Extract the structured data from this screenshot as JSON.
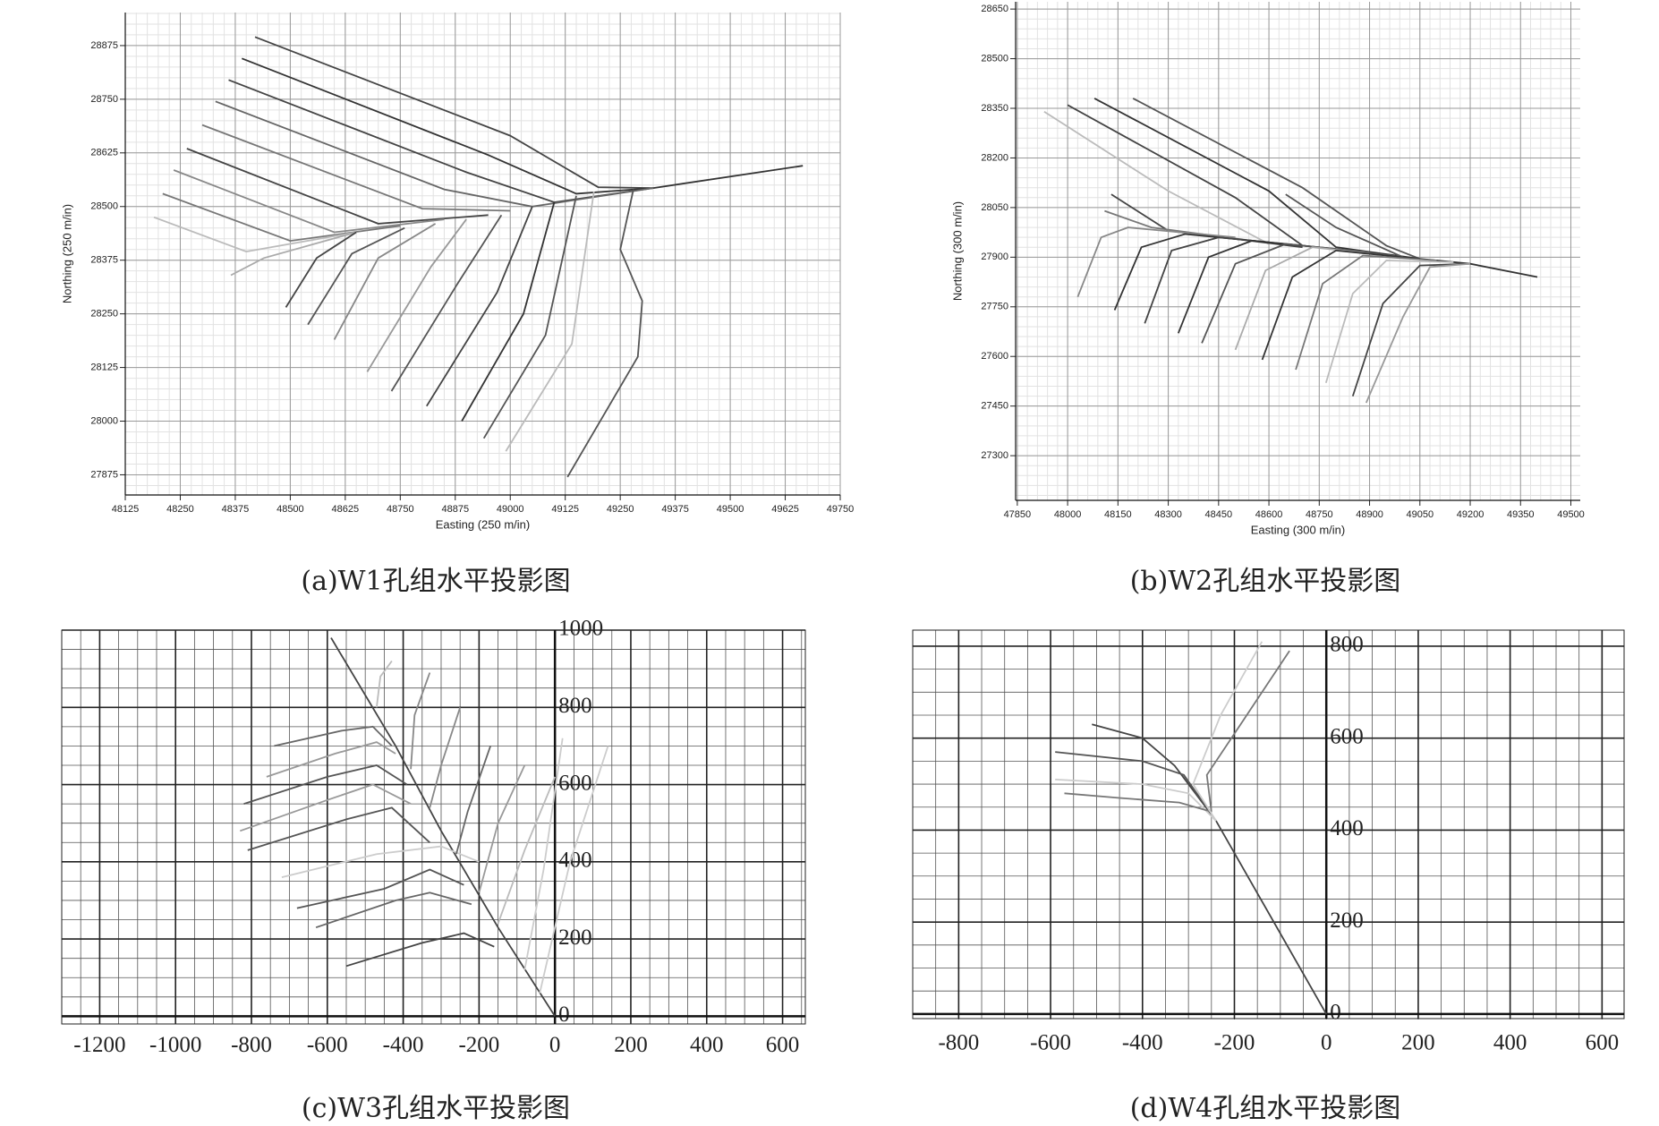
{
  "chart_data": [
    {
      "type": "line",
      "title": "(a)W1孔组水平投影图",
      "xlabel": "Easting (250 m/in)",
      "ylabel": "Northing (250 m/in)",
      "xlim": [
        48125,
        49750
      ],
      "ylim": [
        27828,
        28952
      ],
      "xticks": [
        48125,
        48250,
        48375,
        48500,
        48625,
        48750,
        48875,
        49000,
        49125,
        49250,
        49375,
        49500,
        49625,
        49750
      ],
      "yticks": [
        27875,
        28000,
        28125,
        28250,
        28375,
        28500,
        28625,
        28750,
        28875
      ],
      "grid": true,
      "series": [
        {
          "color": "#333333",
          "x": [
            49325,
            49665
          ],
          "values": [
            28543,
            28595
          ]
        },
        {
          "color": "#444444",
          "x": [
            48420,
            49000,
            49200,
            49325
          ],
          "values": [
            28895,
            28665,
            28545,
            28543
          ]
        },
        {
          "color": "#333333",
          "x": [
            48390,
            48950,
            49150,
            49325
          ],
          "values": [
            28845,
            28620,
            28530,
            28543
          ]
        },
        {
          "color": "#444444",
          "x": [
            48360,
            48900,
            49100,
            49325
          ],
          "values": [
            28795,
            28580,
            28510,
            28543
          ]
        },
        {
          "color": "#666666",
          "x": [
            48330,
            48850,
            49050,
            49325
          ],
          "values": [
            28745,
            28540,
            28500,
            28543
          ]
        },
        {
          "color": "#777777",
          "x": [
            48300,
            48800,
            49000
          ],
          "values": [
            28690,
            28495,
            28490
          ]
        },
        {
          "color": "#444444",
          "x": [
            48265,
            48700,
            48950
          ],
          "values": [
            28635,
            28460,
            28480
          ]
        },
        {
          "color": "#888888",
          "x": [
            48235,
            48600,
            48850
          ],
          "values": [
            28585,
            28440,
            28470
          ]
        },
        {
          "color": "#777777",
          "x": [
            48210,
            48500,
            48750
          ],
          "values": [
            28530,
            28420,
            28455
          ]
        },
        {
          "color": "#bbbbbb",
          "x": [
            48190,
            48400,
            48650
          ],
          "values": [
            28475,
            28395,
            28440
          ]
        },
        {
          "color": "#aaaaaa",
          "x": [
            48365,
            48440,
            48650
          ],
          "values": [
            28340,
            28380,
            28440
          ]
        },
        {
          "color": "#444444",
          "x": [
            48490,
            48560,
            48650
          ],
          "values": [
            28265,
            28380,
            28440
          ]
        },
        {
          "color": "#555555",
          "x": [
            48540,
            48640,
            48760
          ],
          "values": [
            28225,
            28390,
            28450
          ]
        },
        {
          "color": "#888888",
          "x": [
            48600,
            48700,
            48830
          ],
          "values": [
            28190,
            28380,
            28460
          ]
        },
        {
          "color": "#999999",
          "x": [
            48675,
            48820,
            48900
          ],
          "values": [
            28115,
            28360,
            28470
          ]
        },
        {
          "color": "#555555",
          "x": [
            48730,
            48880,
            48980
          ],
          "values": [
            28070,
            28320,
            28480
          ]
        },
        {
          "color": "#444444",
          "x": [
            48810,
            48970,
            49050
          ],
          "values": [
            28035,
            28300,
            28500
          ]
        },
        {
          "color": "#333333",
          "x": [
            48890,
            49030,
            49100
          ],
          "values": [
            28000,
            28250,
            28510
          ]
        },
        {
          "color": "#555555",
          "x": [
            48940,
            49080,
            49150
          ],
          "values": [
            27960,
            28200,
            28525
          ]
        },
        {
          "color": "#bbbbbb",
          "x": [
            48990,
            49140,
            49190
          ],
          "values": [
            27930,
            28180,
            28535
          ]
        },
        {
          "color": "#555555",
          "x": [
            49130,
            49290,
            49300,
            49250,
            49280
          ],
          "values": [
            27870,
            28150,
            28280,
            28400,
            28540
          ]
        }
      ]
    },
    {
      "type": "line",
      "title": "(b)W2孔组水平投影图",
      "xlabel": "Easting (300 m/in)",
      "ylabel": "Northing (300 m/in)",
      "xlim": [
        47845,
        49528
      ],
      "ylim": [
        27165,
        28672
      ],
      "xticks": [
        47850,
        48000,
        48150,
        48300,
        48450,
        48600,
        48750,
        48900,
        49050,
        49200,
        49350,
        49500
      ],
      "yticks": [
        27300,
        27450,
        27600,
        27750,
        27900,
        28050,
        28200,
        28350,
        28500,
        28650
      ],
      "grid": true,
      "series": [
        {
          "color": "#333333",
          "x": [
            49050,
            49200,
            49400
          ],
          "values": [
            27895,
            27880,
            27840
          ]
        },
        {
          "color": "#555555",
          "x": [
            48195,
            48700,
            48950,
            49050
          ],
          "values": [
            28380,
            28110,
            27935,
            27895
          ]
        },
        {
          "color": "#333333",
          "x": [
            48080,
            48600,
            48800,
            49050
          ],
          "values": [
            28380,
            28100,
            27930,
            27895
          ]
        },
        {
          "color": "#444444",
          "x": [
            48000,
            48500,
            48700,
            49000
          ],
          "values": [
            28360,
            28080,
            27935,
            27900
          ]
        },
        {
          "color": "#bbbbbb",
          "x": [
            47930,
            48300,
            48600
          ],
          "values": [
            28340,
            28100,
            27940
          ]
        },
        {
          "color": "#555555",
          "x": [
            48650,
            48800,
            49000
          ],
          "values": [
            28090,
            27990,
            27900
          ]
        },
        {
          "color": "#444444",
          "x": [
            48130,
            48300,
            48700
          ],
          "values": [
            28090,
            27980,
            27930
          ]
        },
        {
          "color": "#777777",
          "x": [
            48110,
            48250,
            48550
          ],
          "values": [
            28040,
            27990,
            27950
          ]
        },
        {
          "color": "#888888",
          "x": [
            48030,
            48100,
            48180,
            48500
          ],
          "values": [
            27780,
            27960,
            27990,
            27960
          ]
        },
        {
          "color": "#333333",
          "x": [
            48140,
            48220,
            48350,
            48600
          ],
          "values": [
            27740,
            27930,
            27970,
            27945
          ]
        },
        {
          "color": "#444444",
          "x": [
            48230,
            48310,
            48450,
            48700
          ],
          "values": [
            27700,
            27920,
            27960,
            27935
          ]
        },
        {
          "color": "#333333",
          "x": [
            48330,
            48420,
            48550,
            48800
          ],
          "values": [
            27670,
            27900,
            27950,
            27925
          ]
        },
        {
          "color": "#555555",
          "x": [
            48400,
            48500,
            48650,
            48900
          ],
          "values": [
            27640,
            27880,
            27940,
            27915
          ]
        },
        {
          "color": "#aaaaaa",
          "x": [
            48500,
            48590,
            48730,
            49000
          ],
          "values": [
            27620,
            27860,
            27930,
            27900
          ]
        },
        {
          "color": "#333333",
          "x": [
            48580,
            48670,
            48800,
            49050
          ],
          "values": [
            27590,
            27840,
            27920,
            27895
          ]
        },
        {
          "color": "#777777",
          "x": [
            48680,
            48760,
            48880,
            49100
          ],
          "values": [
            27560,
            27820,
            27905,
            27890
          ]
        },
        {
          "color": "#bbbbbb",
          "x": [
            48770,
            48850,
            48950,
            49150
          ],
          "values": [
            27520,
            27790,
            27890,
            27885
          ]
        },
        {
          "color": "#444444",
          "x": [
            48850,
            48940,
            49050,
            49200
          ],
          "values": [
            27480,
            27760,
            27875,
            27880
          ]
        },
        {
          "color": "#999999",
          "x": [
            48890,
            49000,
            49080,
            49200
          ],
          "values": [
            27460,
            27720,
            27870,
            27880
          ]
        }
      ]
    },
    {
      "type": "line",
      "title": "(c)W3孔组水平投影图",
      "xlim": [
        -1300,
        660
      ],
      "ylim": [
        -20,
        1000
      ],
      "xticks": [
        -1200,
        -1000,
        -800,
        -600,
        -400,
        -200,
        0,
        200,
        400,
        600
      ],
      "yticks": [
        0,
        200,
        400,
        600,
        800,
        1000
      ],
      "grid": true,
      "series": [
        {
          "color": "#444444",
          "x": [
            0,
            -150,
            -300,
            -420,
            -590
          ],
          "values": [
            0,
            230,
            480,
            700,
            980
          ]
        },
        {
          "color": "#555555",
          "x": [
            -810,
            -550,
            -430,
            -330
          ],
          "values": [
            430,
            510,
            540,
            450
          ]
        },
        {
          "color": "#999999",
          "x": [
            -830,
            -600,
            -480,
            -380
          ],
          "values": [
            480,
            560,
            600,
            550
          ]
        },
        {
          "color": "#555555",
          "x": [
            -820,
            -600,
            -470,
            -390
          ],
          "values": [
            550,
            620,
            650,
            600
          ]
        },
        {
          "color": "#999999",
          "x": [
            -760,
            -580,
            -470,
            -420
          ],
          "values": [
            620,
            680,
            710,
            680
          ]
        },
        {
          "color": "#666666",
          "x": [
            -740,
            -560,
            -480,
            -430
          ],
          "values": [
            700,
            740,
            750,
            700
          ]
        },
        {
          "color": "#555555",
          "x": [
            -680,
            -450,
            -330,
            -240
          ],
          "values": [
            280,
            330,
            380,
            340
          ]
        },
        {
          "color": "#666666",
          "x": [
            -630,
            -420,
            -330,
            -220
          ],
          "values": [
            230,
            300,
            320,
            290
          ]
        },
        {
          "color": "#444444",
          "x": [
            -550,
            -350,
            -240,
            -160
          ],
          "values": [
            130,
            190,
            215,
            180
          ]
        },
        {
          "color": "#cccccc",
          "x": [
            -720,
            -470,
            -300,
            -200
          ],
          "values": [
            360,
            420,
            440,
            400
          ]
        },
        {
          "color": "#888888",
          "x": [
            -330,
            -300,
            -250
          ],
          "values": [
            540,
            650,
            800
          ]
        },
        {
          "color": "#666666",
          "x": [
            -260,
            -230,
            -170
          ],
          "values": [
            420,
            530,
            700
          ]
        },
        {
          "color": "#999999",
          "x": [
            -200,
            -150,
            -80
          ],
          "values": [
            320,
            500,
            650
          ]
        },
        {
          "color": "#bbbbbb",
          "x": [
            -150,
            -80,
            0
          ],
          "values": [
            240,
            430,
            620
          ]
        },
        {
          "color": "#cccccc",
          "x": [
            -80,
            -30,
            20
          ],
          "values": [
            120,
            380,
            720
          ]
        },
        {
          "color": "#cccccc",
          "x": [
            -40,
            40,
            140
          ],
          "values": [
            60,
            400,
            700
          ]
        },
        {
          "color": "#888888",
          "x": [
            -380,
            -370,
            -330
          ],
          "values": [
            640,
            780,
            890
          ]
        },
        {
          "color": "#bbbbbb",
          "x": [
            -470,
            -460,
            -430
          ],
          "values": [
            800,
            880,
            920
          ]
        }
      ]
    },
    {
      "type": "line",
      "title": "(d)W4孔组水平投影图",
      "xlim": [
        -900,
        648
      ],
      "ylim": [
        -10,
        835
      ],
      "xticks": [
        -800,
        -600,
        -400,
        -200,
        0,
        200,
        400,
        600
      ],
      "yticks": [
        0,
        200,
        400,
        600,
        800
      ],
      "grid": true,
      "series": [
        {
          "color": "#444444",
          "x": [
            0,
            -240,
            -330,
            -400,
            -510
          ],
          "values": [
            0,
            420,
            540,
            600,
            630
          ]
        },
        {
          "color": "#555555",
          "x": [
            -240,
            -310,
            -400,
            -590
          ],
          "values": [
            420,
            520,
            550,
            570
          ]
        },
        {
          "color": "#cccccc",
          "x": [
            -240,
            -300,
            -400,
            -590
          ],
          "values": [
            420,
            480,
            500,
            510
          ]
        },
        {
          "color": "#777777",
          "x": [
            -250,
            -320,
            -450,
            -570
          ],
          "values": [
            440,
            460,
            470,
            480
          ]
        },
        {
          "color": "#777777",
          "x": [
            -250,
            -260,
            -180,
            -80
          ],
          "values": [
            440,
            520,
            640,
            790
          ]
        },
        {
          "color": "#cccccc",
          "x": [
            -240,
            -290,
            -230,
            -140
          ],
          "values": [
            420,
            500,
            650,
            810
          ]
        }
      ]
    }
  ]
}
